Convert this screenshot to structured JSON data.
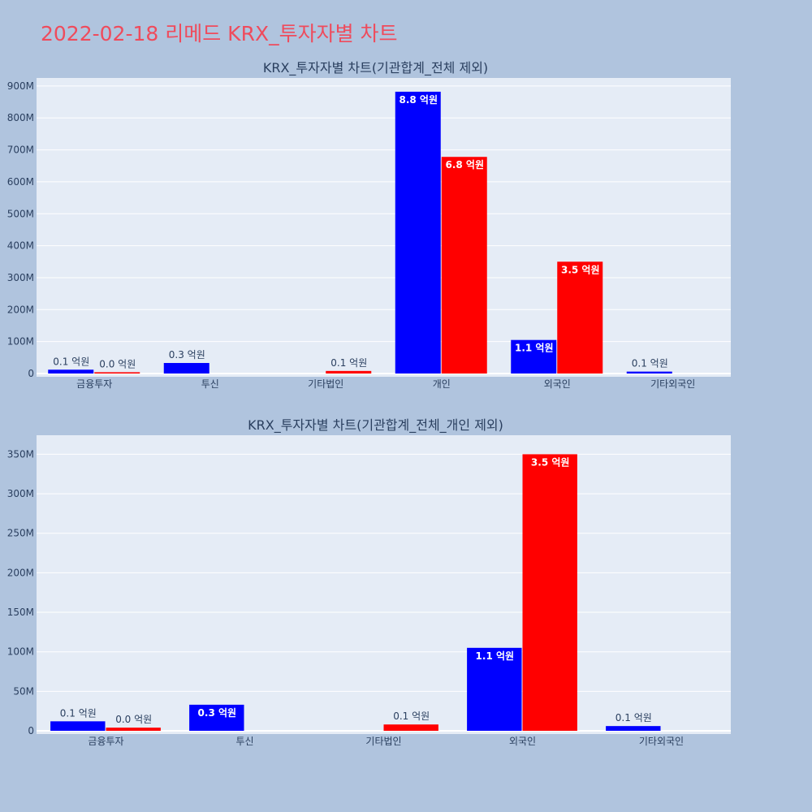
{
  "title": "2022-02-18 리메드 KRX_투자자별 차트",
  "colors": {
    "background": "#b0c4de",
    "plot_bg": "#e5ecf6",
    "title": "#ef4b5c",
    "series_a": "#0000ff",
    "series_b": "#ff0000"
  },
  "chart_data": [
    {
      "type": "bar",
      "title": "KRX_투자자별 차트(기관합계_전체 제외)",
      "categories": [
        "금융투자",
        "투신",
        "기타법인",
        "개인",
        "외국인",
        "기타외국인"
      ],
      "ylim": [
        0,
        920000000
      ],
      "yticks": [
        0,
        100000000,
        200000000,
        300000000,
        400000000,
        500000000,
        600000000,
        700000000,
        800000000,
        900000000
      ],
      "ytick_labels": [
        "0",
        "100M",
        "200M",
        "300M",
        "400M",
        "500M",
        "600M",
        "700M",
        "800M",
        "900M"
      ],
      "grid": true,
      "series": [
        {
          "color": "#0000ff",
          "values": [
            12000000,
            33000000,
            null,
            882000000,
            105000000,
            6000000
          ],
          "labels": [
            "0.1 억원",
            "0.3 억원",
            "",
            "8.8 억원",
            "1.1 억원",
            "0.1 억원"
          ]
        },
        {
          "color": "#ff0000",
          "values": [
            4000000,
            null,
            8000000,
            678000000,
            350000000,
            null
          ],
          "labels": [
            "0.0 억원",
            "",
            "0.1 억원",
            "6.8 억원",
            "3.5 억원",
            ""
          ]
        }
      ]
    },
    {
      "type": "bar",
      "title": "KRX_투자자별 차트(기관합계_전체_개인 제외)",
      "categories": [
        "금융투자",
        "투신",
        "기타법인",
        "외국인",
        "기타외국인"
      ],
      "ylim": [
        0,
        372000000
      ],
      "yticks": [
        0,
        50000000,
        100000000,
        150000000,
        200000000,
        250000000,
        300000000,
        350000000
      ],
      "ytick_labels": [
        "0",
        "50M",
        "100M",
        "150M",
        "200M",
        "250M",
        "300M",
        "350M"
      ],
      "grid": true,
      "series": [
        {
          "color": "#0000ff",
          "values": [
            12000000,
            33000000,
            null,
            105000000,
            6000000
          ],
          "labels": [
            "0.1 억원",
            "0.3 억원",
            "",
            "1.1 억원",
            "0.1 억원"
          ]
        },
        {
          "color": "#ff0000",
          "values": [
            4000000,
            null,
            8000000,
            350000000,
            null
          ],
          "labels": [
            "0.0 억원",
            "",
            "0.1 억원",
            "3.5 억원",
            ""
          ]
        }
      ]
    }
  ]
}
